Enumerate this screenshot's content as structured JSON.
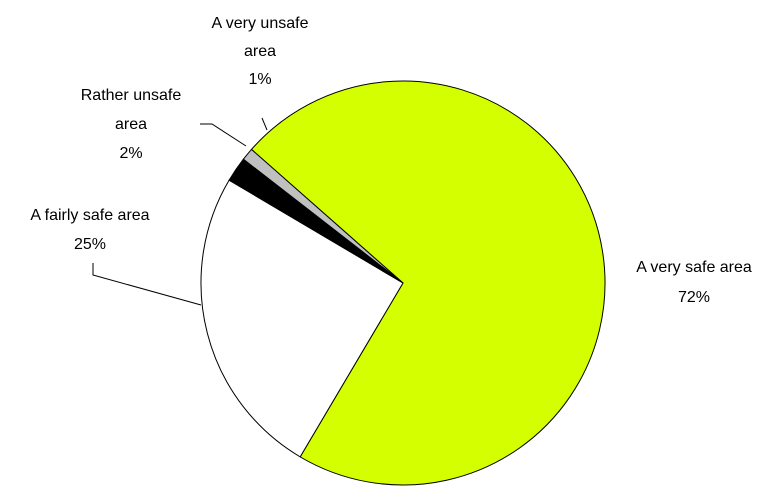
{
  "chart_data": {
    "type": "pie",
    "title": "",
    "slices": [
      {
        "label": [
          "A very safe area"
        ],
        "value": 72,
        "pct_text": "72%",
        "color": "#d4ff00"
      },
      {
        "label": [
          "A fairly safe area"
        ],
        "value": 25,
        "pct_text": "25%",
        "color": "#ffffff"
      },
      {
        "label": [
          "Rather unsafe",
          "area"
        ],
        "value": 2,
        "pct_text": "2%",
        "color": "#000000"
      },
      {
        "label": [
          "A very unsafe",
          "area"
        ],
        "value": 1,
        "pct_text": "1%",
        "color": "#c0c0c0"
      }
    ],
    "legend": "none"
  }
}
